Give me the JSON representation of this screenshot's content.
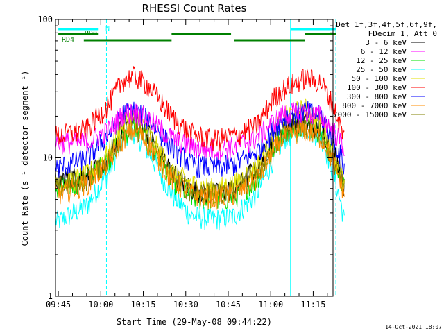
{
  "chart_data": {
    "type": "line",
    "title": "RHESSI Count Rates",
    "xlabel": "Start Time (29-May-08 09:44:22)",
    "ylabel": "Count Rate (s⁻¹ detector segment⁻¹)",
    "yscale": "log",
    "ylim": [
      1,
      100
    ],
    "xlim": [
      "09:44",
      "11:22"
    ],
    "y_ticks": [
      "1",
      "10",
      "100"
    ],
    "x_ticks": [
      "09:45",
      "10:00",
      "10:15",
      "10:30",
      "10:45",
      "11:00",
      "11:15"
    ],
    "legend_header": [
      "Det 1f,3f,4f,5f,6f,9f,",
      "FDecim 1, Att 0"
    ],
    "legend_placement": "right",
    "series": [
      {
        "name": "3 - 6 keV",
        "color": "#000000",
        "values": [
          [
            0,
            7
          ],
          [
            10,
            7.5
          ],
          [
            18,
            9.5
          ],
          [
            23,
            18
          ],
          [
            27,
            20
          ],
          [
            32,
            15
          ],
          [
            40,
            8
          ],
          [
            47,
            6
          ],
          [
            55,
            5.5
          ],
          [
            62,
            6
          ],
          [
            70,
            8.5
          ],
          [
            77,
            15
          ],
          [
            80,
            18
          ],
          [
            87,
            18.5
          ],
          [
            93,
            16
          ],
          [
            97,
            12
          ],
          [
            100,
            8
          ],
          [
            101,
            6
          ]
        ]
      },
      {
        "name": "6 - 12 keV",
        "color": "#ff00ff",
        "values": [
          [
            0,
            13
          ],
          [
            10,
            13
          ],
          [
            18,
            16
          ],
          [
            23,
            21
          ],
          [
            27,
            21.5
          ],
          [
            32,
            19
          ],
          [
            40,
            14
          ],
          [
            47,
            12
          ],
          [
            55,
            11.5
          ],
          [
            62,
            12
          ],
          [
            70,
            14
          ],
          [
            77,
            19
          ],
          [
            80,
            21
          ],
          [
            87,
            21.5
          ],
          [
            93,
            20
          ],
          [
            97,
            16
          ],
          [
            100,
            13
          ],
          [
            101,
            12
          ]
        ]
      },
      {
        "name": "12 - 25 keV",
        "color": "#00e000",
        "values": [
          [
            0,
            6
          ],
          [
            10,
            7
          ],
          [
            18,
            10
          ],
          [
            23,
            15
          ],
          [
            27,
            17
          ],
          [
            32,
            13
          ],
          [
            40,
            7
          ],
          [
            47,
            5.2
          ],
          [
            55,
            5
          ],
          [
            62,
            5.2
          ],
          [
            70,
            7
          ],
          [
            77,
            13
          ],
          [
            80,
            16
          ],
          [
            87,
            18
          ],
          [
            93,
            15
          ],
          [
            97,
            10
          ],
          [
            100,
            7
          ],
          [
            101,
            6
          ]
        ]
      },
      {
        "name": "25 - 50 keV",
        "color": "#00ffff",
        "values": [
          [
            0,
            3.5
          ],
          [
            10,
            4.5
          ],
          [
            18,
            8
          ],
          [
            23,
            14
          ],
          [
            27,
            15.5
          ],
          [
            32,
            11
          ],
          [
            40,
            5.5
          ],
          [
            47,
            3.8
          ],
          [
            55,
            3.6
          ],
          [
            62,
            3.8
          ],
          [
            70,
            5.5
          ],
          [
            77,
            11
          ],
          [
            80,
            14
          ],
          [
            87,
            17
          ],
          [
            93,
            14
          ],
          [
            97,
            8
          ],
          [
            100,
            4.5
          ],
          [
            101,
            3.5
          ]
        ]
      },
      {
        "name": "50 - 100 keV",
        "color": "#e0e000",
        "values": [
          [
            0,
            6.5
          ],
          [
            10,
            7.5
          ],
          [
            18,
            11
          ],
          [
            23,
            18
          ],
          [
            27,
            21
          ],
          [
            32,
            15
          ],
          [
            40,
            8
          ],
          [
            47,
            6.5
          ],
          [
            55,
            6
          ],
          [
            62,
            6.5
          ],
          [
            70,
            8.5
          ],
          [
            77,
            16
          ],
          [
            80,
            20
          ],
          [
            87,
            23
          ],
          [
            93,
            18
          ],
          [
            97,
            11
          ],
          [
            100,
            7.5
          ],
          [
            101,
            6.5
          ]
        ]
      },
      {
        "name": "100 - 300 keV",
        "color": "#ff0000",
        "values": [
          [
            0,
            14.5
          ],
          [
            10,
            16
          ],
          [
            18,
            25
          ],
          [
            23,
            37
          ],
          [
            27,
            39
          ],
          [
            32,
            33
          ],
          [
            40,
            20
          ],
          [
            47,
            15
          ],
          [
            55,
            13.5
          ],
          [
            62,
            14.5
          ],
          [
            70,
            17
          ],
          [
            76,
            27
          ],
          [
            80,
            32
          ],
          [
            87,
            38
          ],
          [
            93,
            35
          ],
          [
            97,
            24
          ],
          [
            100,
            16
          ],
          [
            101,
            14
          ]
        ]
      },
      {
        "name": "300 - 800 keV",
        "color": "#0000ff",
        "values": [
          [
            0,
            8.5
          ],
          [
            10,
            10
          ],
          [
            18,
            15
          ],
          [
            23,
            21
          ],
          [
            27,
            22
          ],
          [
            32,
            19
          ],
          [
            40,
            12
          ],
          [
            47,
            9
          ],
          [
            55,
            8.5
          ],
          [
            62,
            9
          ],
          [
            70,
            11
          ],
          [
            77,
            17
          ],
          [
            80,
            20
          ],
          [
            87,
            22
          ],
          [
            93,
            20
          ],
          [
            97,
            14
          ],
          [
            100,
            10
          ],
          [
            101,
            8.5
          ]
        ]
      },
      {
        "name": "800 - 7000 keV",
        "color": "#ff8c00",
        "values": [
          [
            0,
            5.5
          ],
          [
            10,
            6.5
          ],
          [
            18,
            9.5
          ],
          [
            23,
            14
          ],
          [
            27,
            16
          ],
          [
            32,
            12.5
          ],
          [
            40,
            7
          ],
          [
            47,
            5.5
          ],
          [
            55,
            5.2
          ],
          [
            62,
            5.5
          ],
          [
            70,
            7
          ],
          [
            77,
            12
          ],
          [
            80,
            14.5
          ],
          [
            87,
            16
          ],
          [
            93,
            14
          ],
          [
            97,
            9.5
          ],
          [
            100,
            6.5
          ],
          [
            101,
            5.5
          ]
        ]
      },
      {
        "name": "7000 - 15000 keV",
        "color": "#808000",
        "values": [
          [
            0,
            6.2
          ],
          [
            10,
            7
          ],
          [
            18,
            10
          ],
          [
            23,
            15
          ],
          [
            27,
            17
          ],
          [
            32,
            13
          ],
          [
            40,
            7.5
          ],
          [
            47,
            5.8
          ],
          [
            55,
            5.5
          ],
          [
            62,
            5.8
          ],
          [
            70,
            7.5
          ],
          [
            77,
            13
          ],
          [
            80,
            15.5
          ],
          [
            87,
            17
          ],
          [
            93,
            15
          ],
          [
            97,
            10
          ],
          [
            100,
            7
          ],
          [
            101,
            6
          ]
        ]
      }
    ],
    "flags": [
      {
        "name": "N",
        "color": "#00ffff",
        "segments": [
          [
            0,
            14
          ],
          [
            82,
            98
          ]
        ]
      },
      {
        "name": "RD0",
        "color": "#008000",
        "segments": [
          [
            0,
            14
          ],
          [
            40,
            61
          ],
          [
            87,
            98
          ]
        ]
      },
      {
        "name": "RD4",
        "color": "#008000",
        "segments": [
          [
            9,
            40
          ],
          [
            62,
            87
          ]
        ]
      }
    ],
    "vlines": [
      {
        "color": "#00ffff",
        "style": "dashed",
        "x": [
          17,
          98
        ]
      },
      {
        "color": "#00ffff",
        "style": "solid",
        "x": [
          82
        ]
      }
    ],
    "timestamp": "14-Oct-2021 18:07"
  }
}
